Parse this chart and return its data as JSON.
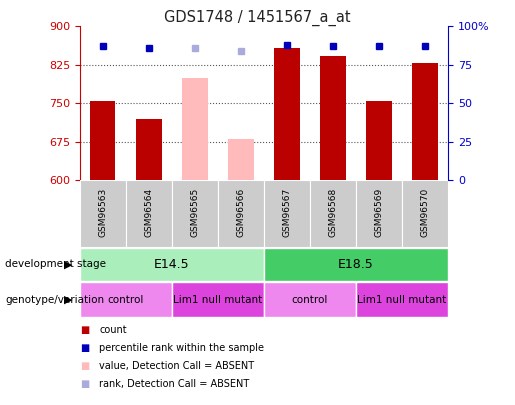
{
  "title": "GDS1748 / 1451567_a_at",
  "samples": [
    "GSM96563",
    "GSM96564",
    "GSM96565",
    "GSM96566",
    "GSM96567",
    "GSM96568",
    "GSM96569",
    "GSM96570"
  ],
  "count_values": [
    755,
    720,
    null,
    null,
    857,
    843,
    755,
    828
  ],
  "absent_values": [
    null,
    null,
    800,
    680,
    null,
    null,
    null,
    null
  ],
  "percentile_values": [
    87,
    86,
    null,
    null,
    88,
    87,
    87,
    87
  ],
  "absent_percentile": [
    null,
    null,
    86,
    84,
    null,
    null,
    null,
    null
  ],
  "ylim_left": [
    600,
    900
  ],
  "ylim_right": [
    0,
    100
  ],
  "yticks_left": [
    600,
    675,
    750,
    825,
    900
  ],
  "yticks_right": [
    0,
    25,
    50,
    75,
    100
  ],
  "ytick_labels_right": [
    "0",
    "25",
    "50",
    "75",
    "100%"
  ],
  "bar_color_red": "#bb0000",
  "bar_color_pink": "#ffbbbb",
  "dot_color_blue": "#0000bb",
  "dot_color_lightblue": "#aaaadd",
  "left_axis_color": "#cc0000",
  "right_axis_color": "#0000cc",
  "grid_color": "#555555",
  "sample_bg_color": "#cccccc",
  "development_stages": [
    {
      "label": "E14.5",
      "samples": [
        0,
        1,
        2,
        3
      ],
      "color": "#aaeebb"
    },
    {
      "label": "E18.5",
      "samples": [
        4,
        5,
        6,
        7
      ],
      "color": "#44cc66"
    }
  ],
  "genotype_groups": [
    {
      "label": "control",
      "samples": [
        0,
        1
      ],
      "color": "#ee88ee"
    },
    {
      "label": "Lim1 null mutant",
      "samples": [
        2,
        3
      ],
      "color": "#dd44dd"
    },
    {
      "label": "control",
      "samples": [
        4,
        5
      ],
      "color": "#ee88ee"
    },
    {
      "label": "Lim1 null mutant",
      "samples": [
        6,
        7
      ],
      "color": "#dd44dd"
    }
  ],
  "legend_items": [
    {
      "label": "count",
      "color": "#bb0000",
      "marker": "s"
    },
    {
      "label": "percentile rank within the sample",
      "color": "#0000bb",
      "marker": "s"
    },
    {
      "label": "value, Detection Call = ABSENT",
      "color": "#ffbbbb",
      "marker": "s"
    },
    {
      "label": "rank, Detection Call = ABSENT",
      "color": "#aaaadd",
      "marker": "s"
    }
  ],
  "dev_label": "development stage",
  "geno_label": "genotype/variation",
  "bar_width": 0.55,
  "fig_width": 5.15,
  "fig_height": 4.05,
  "fig_dpi": 100
}
